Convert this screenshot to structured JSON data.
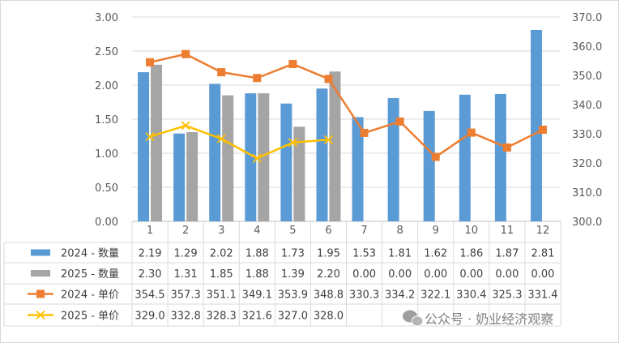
{
  "chart_data": {
    "type": "bar",
    "categories": [
      "1",
      "2",
      "3",
      "4",
      "5",
      "6",
      "7",
      "8",
      "9",
      "10",
      "11",
      "12"
    ],
    "y_left": {
      "ticks": [
        "3.00",
        "2.50",
        "2.00",
        "1.50",
        "1.00",
        "0.50",
        "0.00"
      ],
      "ylim": [
        0,
        3
      ]
    },
    "y_right": {
      "ticks": [
        "370.0",
        "360.0",
        "350.0",
        "340.0",
        "330.0",
        "320.0",
        "310.0",
        "300.0"
      ],
      "ylim": [
        300,
        370
      ]
    },
    "grid": true,
    "series": [
      {
        "name": "2024 - 数量",
        "type": "bar",
        "axis": "left",
        "color": "#5B9BD5",
        "values": [
          2.19,
          1.29,
          2.02,
          1.88,
          1.73,
          1.95,
          1.53,
          1.81,
          1.62,
          1.86,
          1.87,
          2.81
        ],
        "labels": [
          "2.19",
          "1.29",
          "2.02",
          "1.88",
          "1.73",
          "1.95",
          "1.53",
          "1.81",
          "1.62",
          "1.86",
          "1.87",
          "2.81"
        ]
      },
      {
        "name": "2025 - 数量",
        "type": "bar",
        "axis": "left",
        "color": "#A5A5A5",
        "values": [
          2.3,
          1.31,
          1.85,
          1.88,
          1.39,
          2.2,
          0,
          0,
          0,
          0,
          0,
          0
        ],
        "labels": [
          "2.30",
          "1.31",
          "1.85",
          "1.88",
          "1.39",
          "2.20",
          "0.00",
          "0.00",
          "0.00",
          "0.00",
          "0.00",
          "0.00"
        ]
      },
      {
        "name": "2024 - 单价",
        "type": "line",
        "axis": "right",
        "color": "#ED7D31",
        "marker": "square",
        "values": [
          354.5,
          357.3,
          351.1,
          349.1,
          353.9,
          348.8,
          330.3,
          334.2,
          322.1,
          330.4,
          325.3,
          331.4
        ],
        "labels": [
          "354.5",
          "357.3",
          "351.1",
          "349.1",
          "353.9",
          "348.8",
          "330.3",
          "334.2",
          "322.1",
          "330.4",
          "325.3",
          "331.4"
        ]
      },
      {
        "name": "2025 - 单价",
        "type": "line",
        "axis": "right",
        "color": "#FFC000",
        "marker": "x",
        "values": [
          329.0,
          332.8,
          328.3,
          321.6,
          327.0,
          328.0,
          null,
          null,
          null,
          null,
          null,
          null
        ],
        "labels": [
          "329.0",
          "332.8",
          "328.3",
          "321.6",
          "327.0",
          "328.0",
          "",
          "",
          "",
          "",
          "",
          ""
        ]
      }
    ]
  },
  "watermark": {
    "text": "公众号 · 奶业经济观察",
    "icon": "wechat-icon"
  }
}
